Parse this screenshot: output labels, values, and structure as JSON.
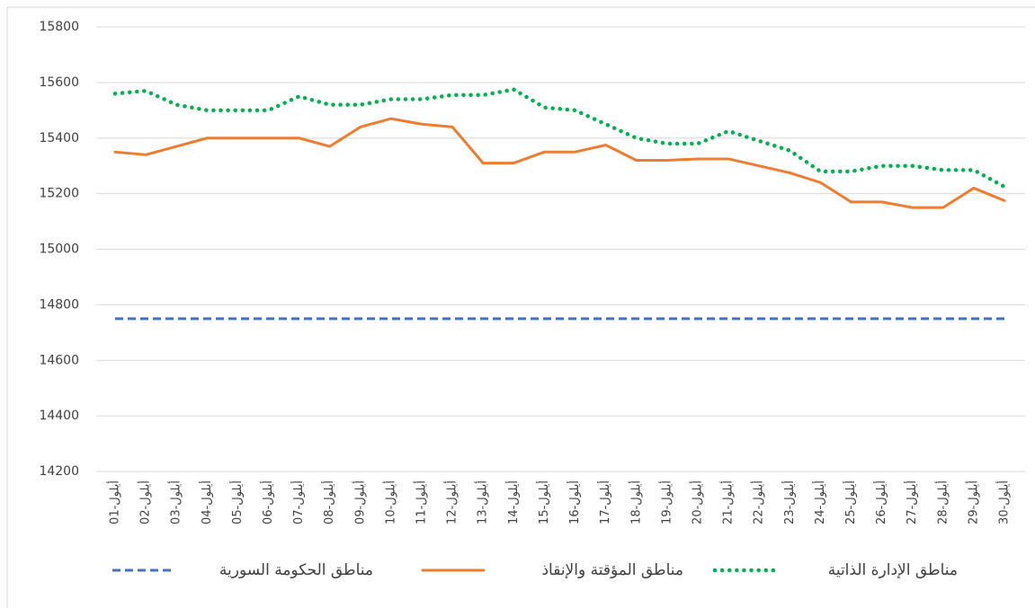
{
  "chart_data": {
    "type": "line",
    "categories": [
      "01-أيلول",
      "02-أيلول",
      "03-أيلول",
      "04-أيلول",
      "05-أيلول",
      "06-أيلول",
      "07-أيلول",
      "08-أيلول",
      "09-أيلول",
      "10-أيلول",
      "11-أيلول",
      "12-أيلول",
      "13-أيلول",
      "14-أيلول",
      "15-أيلول",
      "16-أيلول",
      "17-أيلول",
      "18-أيلول",
      "19-أيلول",
      "20-أيلول",
      "21-أيلول",
      "22-أيلول",
      "23-أيلول",
      "24-أيلول",
      "25-أيلول",
      "26-أيلول",
      "27-أيلول",
      "28-أيلول",
      "29-أيلول",
      "30-أيلول"
    ],
    "series": [
      {
        "name": "مناطق الحكومة السورية",
        "color": "#4472c4",
        "style": "dashed",
        "values": [
          14750,
          14750,
          14750,
          14750,
          14750,
          14750,
          14750,
          14750,
          14750,
          14750,
          14750,
          14750,
          14750,
          14750,
          14750,
          14750,
          14750,
          14750,
          14750,
          14750,
          14750,
          14750,
          14750,
          14750,
          14750,
          14750,
          14750,
          14750,
          14750,
          14750
        ]
      },
      {
        "name": "مناطق المؤقتة والإنقاذ",
        "color": "#ed7d31",
        "style": "solid",
        "values": [
          15350,
          15340,
          15370,
          15400,
          15400,
          15400,
          15400,
          15370,
          15440,
          15470,
          15450,
          15440,
          15310,
          15310,
          15350,
          15350,
          15375,
          15320,
          15320,
          15325,
          15325,
          15300,
          15275,
          15240,
          15170,
          15170,
          15150,
          15150,
          15220,
          15175
        ]
      },
      {
        "name": "مناطق الإدارة الذاتية",
        "color": "#00b050",
        "style": "dotted",
        "values": [
          15560,
          15570,
          15520,
          15500,
          15500,
          15500,
          15550,
          15520,
          15520,
          15540,
          15540,
          15555,
          15555,
          15575,
          15510,
          15500,
          15450,
          15400,
          15380,
          15380,
          15425,
          15390,
          15355,
          15280,
          15280,
          15300,
          15300,
          15285,
          15285,
          15225
        ]
      }
    ],
    "ylim": [
      14200,
      15800
    ],
    "yticks": [
      14200,
      14400,
      14600,
      14800,
      15000,
      15200,
      15400,
      15600,
      15800
    ],
    "grid": true,
    "legend": "bottom"
  }
}
